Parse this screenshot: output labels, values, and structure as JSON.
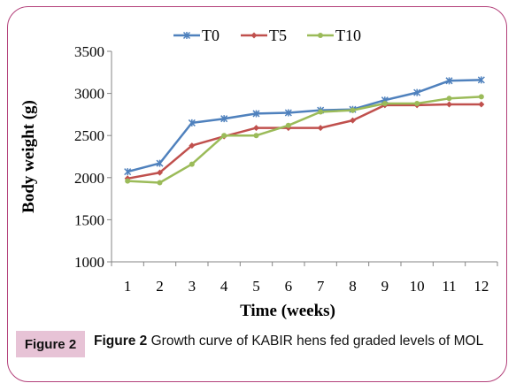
{
  "chart_data": {
    "type": "line",
    "xlabel": "Time (weeks)",
    "ylabel": "Body weight (g)",
    "categories": [
      "1",
      "2",
      "3",
      "4",
      "5",
      "6",
      "7",
      "8",
      "9",
      "10",
      "11",
      "12"
    ],
    "ylim": [
      1000,
      3500
    ],
    "yticks": [
      "1000",
      "1500",
      "2000",
      "2500",
      "3000",
      "3500"
    ],
    "legend_position": "top",
    "grid": false,
    "series": [
      {
        "name": "T0",
        "color": "#4f81bd",
        "marker": "star",
        "values": [
          2070,
          2170,
          2650,
          2700,
          2760,
          2770,
          2800,
          2810,
          2920,
          3010,
          3150,
          3160
        ]
      },
      {
        "name": "T5",
        "color": "#c0504d",
        "marker": "diamond",
        "values": [
          1990,
          2060,
          2380,
          2490,
          2590,
          2590,
          2590,
          2680,
          2860,
          2860,
          2870,
          2870
        ]
      },
      {
        "name": "T10",
        "color": "#9bbb59",
        "marker": "circle",
        "values": [
          1960,
          1940,
          2160,
          2500,
          2500,
          2620,
          2780,
          2800,
          2880,
          2880,
          2940,
          2960
        ]
      }
    ]
  },
  "caption": {
    "tag": "Figure 2",
    "label": "Figure 2",
    "text": "Growth curve of KABIR hens fed graded levels of MOL"
  }
}
